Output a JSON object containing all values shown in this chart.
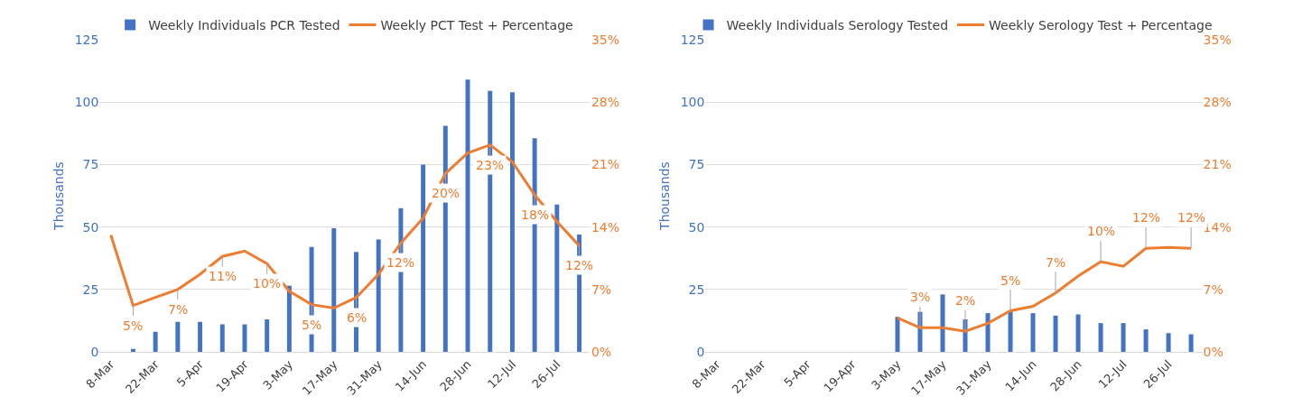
{
  "chart_data": [
    {
      "type": "bar",
      "categories": [
        "8-Mar",
        null,
        "22-Mar",
        null,
        "5-Apr",
        null,
        "19-Apr",
        null,
        "3-May",
        null,
        "17-May",
        null,
        "31-May",
        null,
        "14-Jun",
        null,
        "28-Jun",
        null,
        "12-Jul",
        null,
        "26-Jul",
        null
      ],
      "ylabel": "Thousands",
      "ylim": [
        0,
        125
      ],
      "yticks": [
        0,
        25,
        50,
        75,
        100,
        125
      ],
      "y2lim": [
        0,
        35
      ],
      "y2ticks": [
        {
          "value": 0,
          "label": "0%"
        },
        {
          "value": 7,
          "label": "7%"
        },
        {
          "value": 14,
          "label": "14%"
        },
        {
          "value": 21,
          "label": "21%"
        },
        {
          "value": 28,
          "label": "28%"
        },
        {
          "value": 35,
          "label": "35%"
        }
      ],
      "grid": "y",
      "legend": "top",
      "series": [
        {
          "name": "Weekly Individuals PCR Tested",
          "color": "#4472c4",
          "values": [
            null,
            1.2,
            8,
            12,
            12,
            11,
            11,
            13,
            26.5,
            42,
            49.5,
            40,
            45,
            57.5,
            75,
            90.5,
            109,
            104.5,
            104,
            85.5,
            59,
            47
          ]
        },
        {
          "name": "Weekly PCT Test + Percentage",
          "type": "line",
          "axis": "y2",
          "color": "#ed7d31",
          "values": [
            13.1,
            5.2,
            6.1,
            7.0,
            8.7,
            10.7,
            11.3,
            9.9,
            6.8,
            5.3,
            4.9,
            6.1,
            8.7,
            12.2,
            15.0,
            20.0,
            22.3,
            23.2,
            21.3,
            17.6,
            14.6,
            11.9
          ],
          "value_labels": [
            null,
            "5%",
            null,
            "7%",
            null,
            "11%",
            null,
            "10%",
            null,
            "5%",
            null,
            "6%",
            null,
            "12%",
            null,
            "20%",
            null,
            "23%",
            null,
            "18%",
            null,
            "12%"
          ]
        }
      ]
    },
    {
      "type": "bar",
      "categories": [
        "8-Mar",
        null,
        "22-Mar",
        null,
        "5-Apr",
        null,
        "19-Apr",
        null,
        "3-May",
        null,
        "17-May",
        null,
        "31-May",
        null,
        "14-Jun",
        null,
        "28-Jun",
        null,
        "12-Jul",
        null,
        "26-Jul",
        null
      ],
      "ylabel": "Thousands",
      "ylim": [
        0,
        125
      ],
      "yticks": [
        0,
        25,
        50,
        75,
        100,
        125
      ],
      "y2lim": [
        0,
        35
      ],
      "y2ticks": [
        {
          "value": 0,
          "label": "0%"
        },
        {
          "value": 7,
          "label": "7%"
        },
        {
          "value": 14,
          "label": "14%"
        },
        {
          "value": 21,
          "label": "21%"
        },
        {
          "value": 28,
          "label": "28%"
        },
        {
          "value": 35,
          "label": "35%"
        }
      ],
      "grid": "y",
      "legend": "top",
      "series": [
        {
          "name": "Weekly Individuals Serology Tested",
          "color": "#4472c4",
          "values": [
            null,
            null,
            null,
            null,
            null,
            null,
            null,
            null,
            14,
            16,
            23,
            13,
            15.5,
            16.5,
            15.5,
            14.5,
            15,
            11.5,
            11.5,
            9,
            7.5,
            7
          ]
        },
        {
          "name": "Weekly Serology Test + Percentage",
          "type": "line",
          "axis": "y2",
          "color": "#ed7d31",
          "values": [
            null,
            null,
            null,
            null,
            null,
            null,
            null,
            null,
            3.8,
            2.7,
            2.7,
            2.3,
            3.2,
            4.6,
            5.1,
            6.6,
            8.5,
            10.1,
            9.6,
            11.6,
            11.7,
            11.6
          ],
          "value_labels": [
            null,
            null,
            null,
            null,
            null,
            null,
            null,
            null,
            null,
            "3%",
            null,
            "2%",
            null,
            "5%",
            null,
            "7%",
            null,
            "10%",
            null,
            "12%",
            null,
            "12%"
          ]
        }
      ]
    }
  ]
}
